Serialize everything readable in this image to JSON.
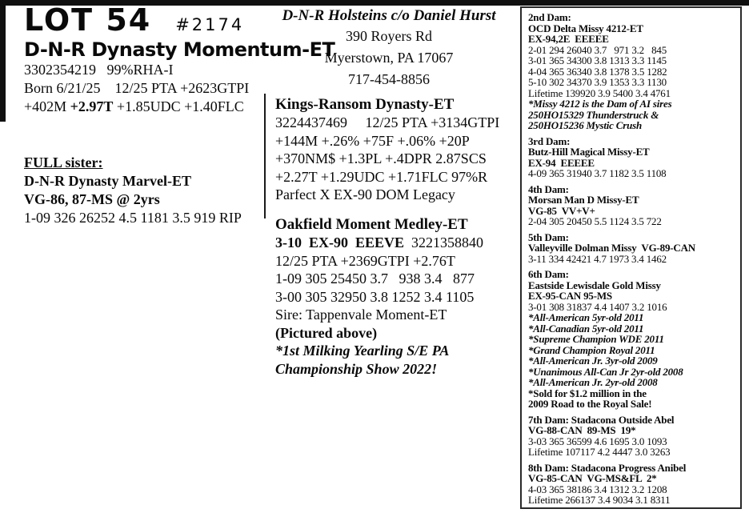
{
  "header": {
    "lot": "LOT 54",
    "tag": "#2174",
    "animal_name": "D-N-R Dynasty Momentum-ET",
    "reg_line": "3302354219   99%RHA-I",
    "born_line": "Born 6/21/25    12/25 PTA +2623GTPI",
    "pta_pre": "+402M ",
    "pta_bold": "+2.97T",
    "pta_post": " +1.85UDC +1.40FLC"
  },
  "full_sister": {
    "heading": "FULL sister:",
    "name": "D-N-R Dynasty Marvel-ET",
    "score": "VG-86, 87-MS @ 2yrs",
    "record": "1-09 326 26252 4.5 1181 3.5 919 RIP"
  },
  "consignor": {
    "name": "D-N-R Holsteins c/o Daniel Hurst",
    "address1": "390 Royers Rd",
    "address2": "Myerstown, PA 17067",
    "phone": "717-454-8856"
  },
  "sire": {
    "name": "Kings-Ransom Dynasty-ET",
    "lines": [
      "3224437469     12/25 PTA +3134GTPI",
      "+144M +.26% +75F +.06% +20P",
      "+370NM$ +1.3PL +.4DPR 2.87SCS",
      "+2.27T +1.29UDC +1.71FLC 97%R",
      "Parfect X EX-90 DOM Legacy"
    ]
  },
  "dam": {
    "name": "Oakfield Moment Medley-ET",
    "score": "3-10  EX-90  EEEVE",
    "reg": "  3221358840",
    "lines": [
      "12/25 PTA +2369GTPI +2.76T",
      "1-09 305 25450 3.7   938 3.4   877",
      "3-00 305 32950 3.8 1252 3.4 1105",
      "Sire: Tappenvale Moment-ET"
    ],
    "pictured": "(Pictured above)",
    "note1": "*1st Milking Yearling S/E PA",
    "note2": "Championship Show 2022!"
  },
  "pedigree": {
    "sections": [
      {
        "lines": [
          {
            "t": "2nd Dam:",
            "s": "b"
          },
          {
            "t": "OCD Delta Missy 4212-ET",
            "s": "b"
          },
          {
            "t": "EX-94,2E  EEEEE",
            "s": "b"
          },
          {
            "t": "2-01 294 26040 3.7   971 3.2   845",
            "s": "r"
          },
          {
            "t": "3-01 365 34300 3.8 1313 3.3 1145",
            "s": "r"
          },
          {
            "t": "4-04 365 36340 3.8 1378 3.5 1282",
            "s": "r"
          },
          {
            "t": "5-10 302 34370 3.9 1353 3.3 1130",
            "s": "r"
          },
          {
            "t": "Lifetime 139920 3.9 5400 3.4 4761",
            "s": "r"
          },
          {
            "t": "*Missy 4212 is the Dam of AI sires",
            "s": "bi"
          },
          {
            "t": "250HO15329 Thunderstruck &",
            "s": "bi"
          },
          {
            "t": "250HO15236 Mystic Crush",
            "s": "bi"
          }
        ]
      },
      {
        "lines": [
          {
            "t": "3rd Dam:",
            "s": "b"
          },
          {
            "t": "Butz-Hill Magical Missy-ET",
            "s": "b"
          },
          {
            "t": "EX-94  EEEEE",
            "s": "b"
          },
          {
            "t": "4-09 365 31940 3.7 1182 3.5 1108",
            "s": "r"
          }
        ]
      },
      {
        "lines": [
          {
            "t": "4th Dam:",
            "s": "b"
          },
          {
            "t": "Morsan Man D Missy-ET",
            "s": "b"
          },
          {
            "t": "VG-85  VV+V+",
            "s": "b"
          },
          {
            "t": "2-04 305 20450 5.5 1124 3.5 722",
            "s": "r"
          }
        ]
      },
      {
        "lines": [
          {
            "t": "5th Dam:",
            "s": "b"
          },
          {
            "t": "Valleyville Dolman Missy  VG-89-CAN",
            "s": "b"
          },
          {
            "t": "3-11 334 42421 4.7 1973 3.4 1462",
            "s": "r"
          }
        ]
      },
      {
        "lines": [
          {
            "t": "6th Dam:",
            "s": "b"
          },
          {
            "t": "Eastside Lewisdale Gold Missy",
            "s": "b"
          },
          {
            "t": "EX-95-CAN 95-MS",
            "s": "b"
          },
          {
            "t": "3-01 308 31837 4.4 1407 3.2 1016",
            "s": "r"
          },
          {
            "t": "*All-American 5yr-old 2011",
            "s": "bi"
          },
          {
            "t": "*All-Canadian 5yr-old 2011",
            "s": "bi"
          },
          {
            "t": "*Supreme Champion WDE 2011",
            "s": "bi"
          },
          {
            "t": "*Grand Champion Royal 2011",
            "s": "bi"
          },
          {
            "t": "*All-American Jr. 3yr-old 2009",
            "s": "bi"
          },
          {
            "t": "*Unanimous All-Can Jr 2yr-old 2008",
            "s": "bi"
          },
          {
            "t": "*All-American Jr. 2yr-old 2008",
            "s": "bi"
          },
          {
            "t": "*Sold for $1.2 million in the",
            "s": "b"
          },
          {
            "t": "2009 Road to the Royal Sale!",
            "s": "b"
          }
        ]
      },
      {
        "lines": [
          {
            "t": "7th Dam: Stadacona Outside Abel",
            "s": "b"
          },
          {
            "t": "VG-88-CAN  89-MS  19*",
            "s": "b"
          },
          {
            "t": "3-03 365 36599 4.6 1695 3.0 1093",
            "s": "r"
          },
          {
            "t": "Lifetime 107117 4.2 4447 3.0 3263",
            "s": "r"
          }
        ]
      },
      {
        "lines": [
          {
            "t": "8th Dam: Stadacona Progress Anibel",
            "s": "b"
          },
          {
            "t": "VG-85-CAN  VG-MS&FL  2*",
            "s": "b"
          },
          {
            "t": "4-03 365 38186 3.4 1312 3.2 1208",
            "s": "r"
          },
          {
            "t": "Lifetime 266137 3.4 9034 3.1 8311",
            "s": "r"
          }
        ]
      }
    ]
  }
}
